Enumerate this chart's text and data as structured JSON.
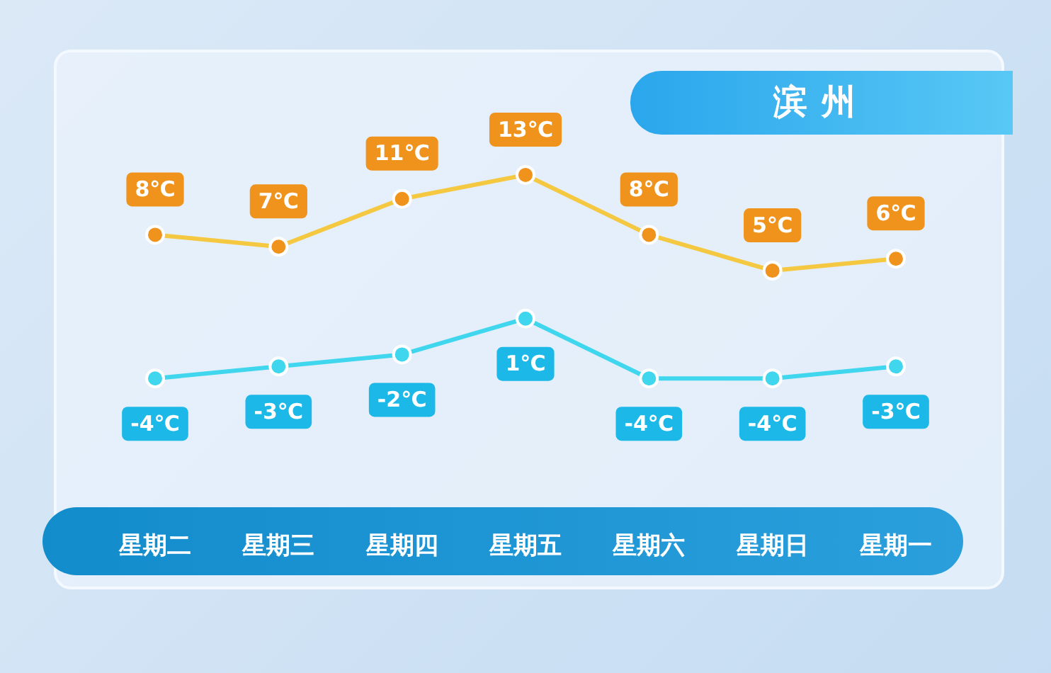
{
  "chart_data": {
    "type": "line",
    "title": "滨州",
    "categories": [
      "星期二",
      "星期三",
      "星期四",
      "星期五",
      "星期六",
      "星期日",
      "星期一"
    ],
    "series": [
      {
        "color": "#f5c842",
        "values": [
          8,
          7,
          11,
          13,
          8,
          5,
          6
        ],
        "value_labels": [
          "8℃",
          "7℃",
          "11℃",
          "13℃",
          "8℃",
          "5℃",
          "6℃"
        ]
      },
      {
        "color": "#3fd6ee",
        "values": [
          -4,
          -3,
          -2,
          1,
          -4,
          -4,
          -3
        ],
        "value_labels": [
          "-4℃",
          "-3℃",
          "-2℃",
          "1℃",
          "-4℃",
          "-4℃",
          "-3℃"
        ]
      }
    ],
    "marker": "circle",
    "line_style": "solid",
    "legend": false,
    "grid": false
  }
}
